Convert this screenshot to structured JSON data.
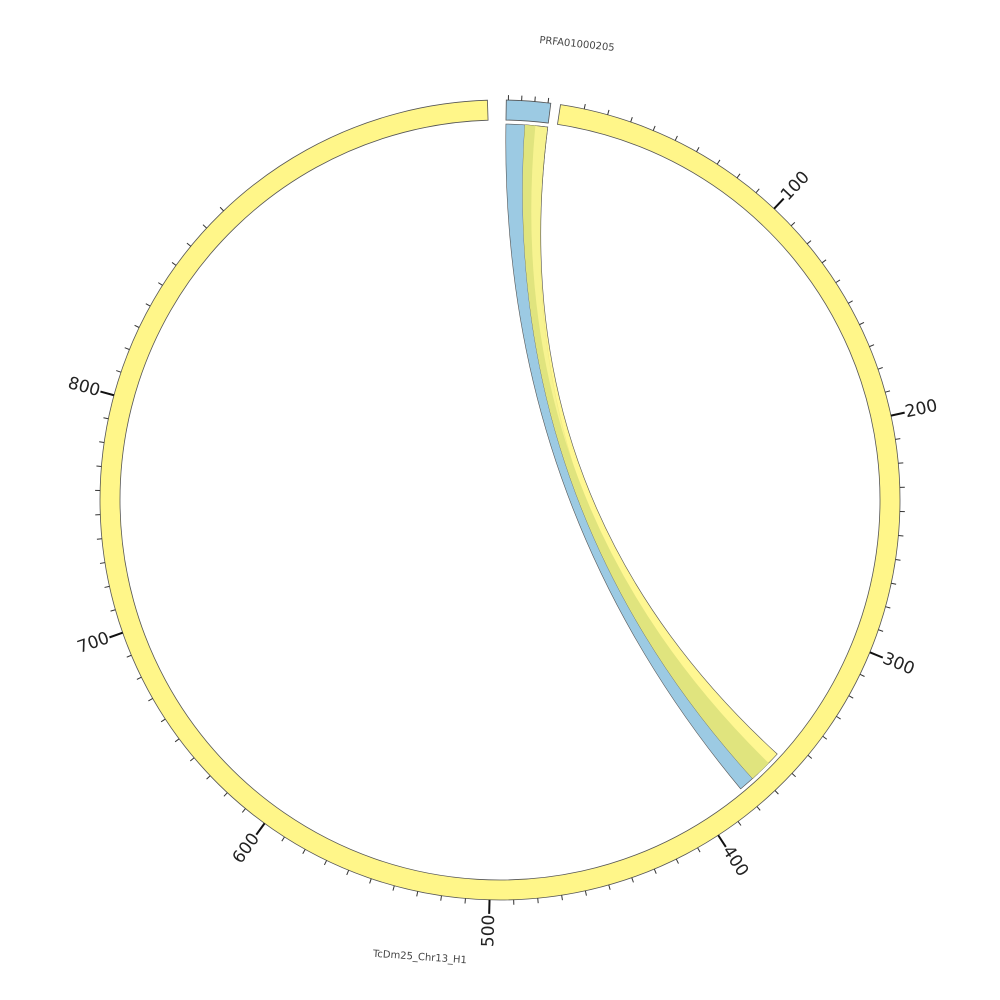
{
  "diagram": {
    "type": "circos",
    "colors": {
      "main": "#fff689",
      "contig": "#9ccae3",
      "overlap": "#e0e47e",
      "outline": "#555555",
      "tick": "#333333"
    },
    "segments": [
      {
        "id": "contig",
        "label": "PRFA01000205",
        "color": "#9ccae3"
      },
      {
        "id": "main",
        "label": "TcDm25_Chr13_H1",
        "color": "#fff689"
      }
    ],
    "main_tick_labels": [
      "100",
      "200",
      "300",
      "400",
      "500",
      "600",
      "700",
      "800"
    ]
  }
}
